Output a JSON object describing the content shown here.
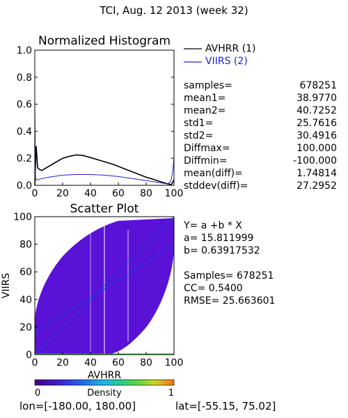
{
  "header": {
    "title": "TCI,  Aug. 12 2013 (week 32)"
  },
  "colors": {
    "avhrr_line": "#000000",
    "viirs_line": "#2020cc",
    "scatter_fill": "#5a12d6",
    "fit_line": "#1a3fe0",
    "white_streak": "#ffffff"
  },
  "chart_data": [
    {
      "type": "line",
      "title": "Normalized Histogram",
      "xlim": [
        0,
        100
      ],
      "ylim": [
        0,
        1.0
      ],
      "xticks": [
        "0",
        "20",
        "40",
        "60",
        "80",
        "100"
      ],
      "yticks": [
        "0.0",
        "0.2",
        "0.4",
        "0.6",
        "0.8",
        "1.0"
      ],
      "legend": {
        "placement": "right",
        "entries": [
          "AVHRR (1)",
          "VIIRS (2)"
        ]
      },
      "series": [
        {
          "name": "AVHRR (1)",
          "x": [
            0,
            1,
            2,
            3,
            5,
            10,
            15,
            20,
            25,
            30,
            35,
            40,
            45,
            50,
            55,
            60,
            65,
            70,
            75,
            80,
            85,
            90,
            95,
            98,
            99,
            100
          ],
          "y": [
            0.0,
            0.29,
            0.13,
            0.12,
            0.11,
            0.14,
            0.17,
            0.2,
            0.215,
            0.225,
            0.22,
            0.205,
            0.19,
            0.175,
            0.16,
            0.14,
            0.12,
            0.1,
            0.08,
            0.06,
            0.045,
            0.028,
            0.012,
            0.005,
            0.02,
            0.04
          ]
        },
        {
          "name": "VIIRS (2)",
          "x": [
            0,
            0.5,
            1,
            2,
            5,
            10,
            20,
            30,
            40,
            50,
            60,
            70,
            80,
            90,
            95,
            97,
            98,
            99,
            100
          ],
          "y": [
            0.6,
            0.06,
            0.04,
            0.04,
            0.05,
            0.06,
            0.075,
            0.08,
            0.08,
            0.075,
            0.065,
            0.05,
            0.035,
            0.02,
            0.01,
            0.02,
            0.04,
            0.1,
            0.2
          ]
        }
      ]
    },
    {
      "type": "scatter",
      "title": "Scatter Plot",
      "xlabel": "AVHRR",
      "ylabel": "VIIRS",
      "xlim": [
        0,
        100
      ],
      "ylim": [
        0,
        100
      ],
      "xticks": [
        "0",
        "20",
        "40",
        "60",
        "80",
        "100"
      ],
      "yticks": [
        "0",
        "20",
        "40",
        "60",
        "80",
        "100"
      ],
      "fit": {
        "a": 15.811999,
        "b": 0.63917532
      },
      "density_colorbar": {
        "label": "Density",
        "min_label": "0",
        "max_label": "1"
      }
    }
  ],
  "stats": {
    "rows": [
      {
        "label": "samples=",
        "value": "678251"
      },
      {
        "label": "mean1=",
        "value": "38.9770"
      },
      {
        "label": "mean2=",
        "value": "40.7252"
      },
      {
        "label": "std1=",
        "value": "25.7616"
      },
      {
        "label": "std2=",
        "value": "30.4916"
      },
      {
        "label": "Diffmax=",
        "value": "100.000"
      },
      {
        "label": "Diffmin=",
        "value": "-100.000"
      },
      {
        "label": "mean(diff)=",
        "value": "1.74814"
      },
      {
        "label": "stddev(diff)=",
        "value": "27.2952"
      }
    ]
  },
  "fit_text": {
    "equation": "Y= a +b * X",
    "a_line": "a= 15.811999",
    "b_line": "b= 0.63917532",
    "samples_line": "Samples= 678251",
    "cc_line": "CC=  0.5400",
    "rmse_line": "RMSE= 25.663601"
  },
  "footer": {
    "lon_text": "lon=[-180.00, 180.00]",
    "lat_text": "lat=[-55.15, 75.02]"
  }
}
